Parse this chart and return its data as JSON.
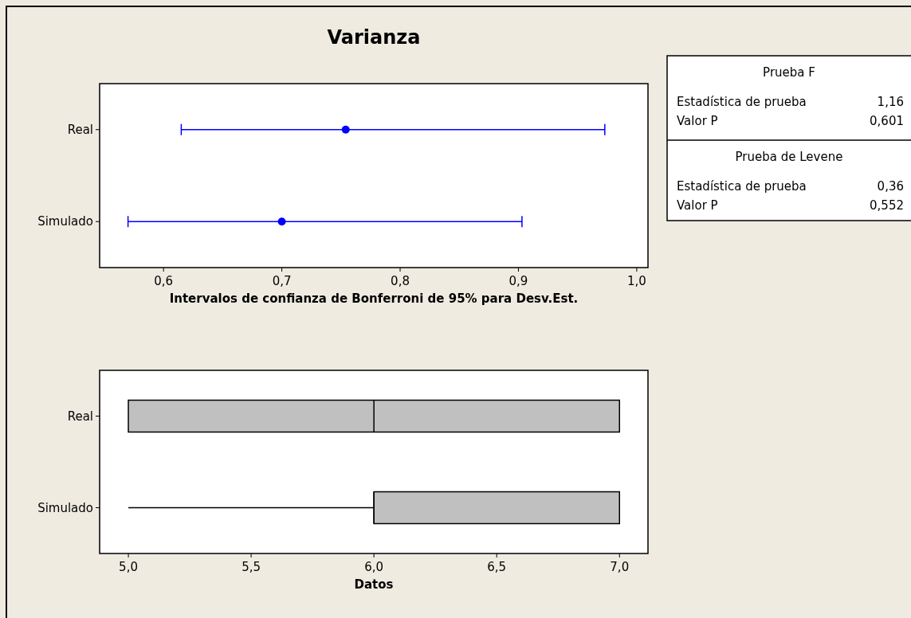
{
  "chart_data": [
    {
      "type": "scatter",
      "title": "Varianza",
      "orientation": "horizontal",
      "categories": [
        "Real",
        "Simulado"
      ],
      "values": [
        0.754,
        0.7
      ],
      "errors": [
        [
          0.615,
          0.973
        ],
        [
          0.57,
          0.903
        ]
      ],
      "color": "#0000ff",
      "marker": "circle",
      "xlim": [
        0.546,
        1.0095
      ],
      "xticks": [
        {
          "value": 0.6,
          "label": "0,6"
        },
        {
          "value": 0.7,
          "label": "0,7"
        },
        {
          "value": 0.8,
          "label": "0,8"
        },
        {
          "value": 0.9,
          "label": "0,9"
        },
        {
          "value": 1.0,
          "label": "1,0"
        }
      ],
      "xlabel": "Intervalos de confianza de Bonferroni de 95% para Desv.Est."
    },
    {
      "type": "box",
      "orientation": "horizontal",
      "categories": [
        "Real",
        "Simulado"
      ],
      "boxes": [
        {
          "low": 5,
          "q1": 5,
          "median": 6,
          "q3": 7,
          "high": 7
        },
        {
          "low": 5,
          "q1": 6,
          "median": 6,
          "q3": 7,
          "high": 7
        }
      ],
      "color": "#c0c0c0",
      "xlim": [
        4.883,
        7.116
      ],
      "xticks": [
        {
          "value": 5,
          "label": "5,0"
        },
        {
          "value": 5.5,
          "label": "5,5"
        },
        {
          "value": 6,
          "label": "6,0"
        },
        {
          "value": 6.5,
          "label": "6,5"
        },
        {
          "value": 7,
          "label": "7,0"
        }
      ],
      "xlabel": "Datos"
    },
    {
      "type": "other",
      "annotations": [
        "Prueba F",
        "Estadística de prueba",
        "1,16",
        "Valor P",
        "0,601",
        "Prueba de Levene",
        "Estadística de prueba",
        "0,36",
        "Valor P",
        "0,552"
      ]
    }
  ]
}
